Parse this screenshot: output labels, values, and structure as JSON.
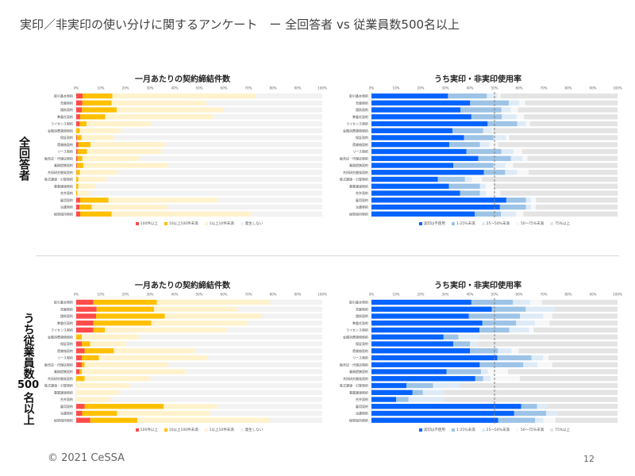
{
  "title": "実印／非実印の使い分けに関するアンケート　ー 全回答者 vs 従業員数500名以上",
  "side_labels": {
    "top": [
      "全回答者"
    ],
    "bottom": [
      "うち従業員数",
      "500",
      "名以上"
    ]
  },
  "footer": "© 2021 CeSSA",
  "page_number": "12",
  "colors": {
    "count": [
      "#ff4b4b",
      "#ffc000",
      "#fff2cc",
      "#f2f2f2"
    ],
    "usage": [
      "#0563ff",
      "#9dc3e6",
      "#deebf7",
      "#f7f7f7",
      "#e4e4e4"
    ]
  },
  "chart_data": [
    {
      "id": "all-count",
      "type": "bar",
      "stacked": true,
      "orientation": "horizontal",
      "title": "一月あたりの契約締結件数",
      "xlim": [
        0,
        100
      ],
      "ticks": [
        "0%",
        "10%",
        "20%",
        "30%",
        "40%",
        "50%",
        "60%",
        "70%",
        "80%",
        "90%",
        "100%"
      ],
      "palette": "count",
      "legend": "bottom",
      "refline": null,
      "categories": [
        "取引基本契約",
        "売買契約",
        "請負契約",
        "準委任契約",
        "ライセンス契約",
        "金銭消費貸借契約",
        "保証契約",
        "賃貸借契約",
        "リース契約",
        "販売店・代理店契約",
        "業務提携契約",
        "共同研究開発契約",
        "株式譲渡・引受契約",
        "事業譲渡契約",
        "合弁契約",
        "雇用契約",
        "派遣契約",
        "秘密保持契約"
      ],
      "series": [
        {
          "name": "100件以上",
          "values": [
            2.6,
            2.5,
            2.3,
            1.6,
            1.4,
            0,
            0.3,
            0.9,
            0.5,
            0.5,
            0.3,
            0.1,
            0,
            0,
            0,
            1.6,
            1.3,
            1.6
          ]
        },
        {
          "name": "10以上100件未満",
          "values": [
            12.1,
            11.9,
            14.2,
            10.2,
            2.8,
            1.5,
            1.9,
            4.9,
            3.9,
            2.0,
            2.6,
            1.4,
            0.9,
            0.9,
            0.5,
            11.5,
            5.0,
            12.8
          ]
        },
        {
          "name": "1以上10件未満",
          "values": [
            58.5,
            38.4,
            43.2,
            43.9,
            26.2,
            16.5,
            13.2,
            30.2,
            30.1,
            23.4,
            34.2,
            15.0,
            11.3,
            6.7,
            4.7,
            44.2,
            31.0,
            56.8
          ]
        },
        {
          "name": "発生しない",
          "values": [
            26.8,
            47.2,
            40.3,
            44.3,
            69.6,
            82.0,
            84.6,
            64.0,
            65.5,
            74.1,
            62.9,
            83.5,
            87.8,
            92.4,
            94.8,
            42.7,
            62.7,
            28.8
          ]
        }
      ]
    },
    {
      "id": "all-usage",
      "type": "bar",
      "stacked": true,
      "orientation": "horizontal",
      "title": "うち実印・非実印使用率",
      "xlim": [
        0,
        100
      ],
      "ticks": [
        "0%",
        "10%",
        "20%",
        "30%",
        "40%",
        "50%",
        "60%",
        "70%",
        "80%",
        "90%",
        "100%"
      ],
      "palette": "usage",
      "legend": "bottom",
      "refline": 50,
      "categories": [
        "取引基本契約",
        "売買契約",
        "請負契約",
        "準委任契約",
        "ライセンス契約",
        "金銭消費貸借契約",
        "保証契約",
        "賃貸借契約",
        "リース契約",
        "販売店・代理店契約",
        "業務提携契約",
        "共同研究開発契約",
        "株式譲渡・引受契約",
        "事業譲渡契約",
        "合弁契約",
        "雇用契約",
        "派遣契約",
        "秘密保持契約"
      ],
      "series": [
        {
          "name": "実印は不使用",
          "values": [
            31.1,
            40.1,
            36.2,
            40.6,
            47.2,
            32.9,
            37.6,
            31.6,
            38.6,
            43.4,
            33.3,
            45.7,
            27.0,
            31.5,
            36.0,
            54.8,
            52.2,
            42.0
          ]
        },
        {
          "name": "1-25％未満",
          "values": [
            15.8,
            15.7,
            16.6,
            12.4,
            12.0,
            12.5,
            12.0,
            12.5,
            14.2,
            13.3,
            16.3,
            8.6,
            11.0,
            12.6,
            8.1,
            8.0,
            10.6,
            10.6
          ]
        },
        {
          "name": "25〜50%未満",
          "values": [
            4.3,
            4.3,
            3.9,
            5.9,
            3.6,
            3.7,
            5.1,
            3.9,
            5.0,
            4.8,
            4.8,
            4.9,
            2.8,
            2.2,
            2.4,
            2.1,
            2.1,
            6.1
          ]
        },
        {
          "name": "50〜75%未満",
          "values": [
            1.3,
            2.3,
            2.8,
            3.1,
            1.6,
            0.3,
            1.2,
            3.5,
            3.5,
            1.9,
            3.1,
            4.7,
            4.1,
            3.4,
            5.9,
            2.0,
            1.8,
            3.0
          ]
        },
        {
          "name": "75%以上",
          "values": [
            47.5,
            37.6,
            40.5,
            38.0,
            35.6,
            50.6,
            44.1,
            48.5,
            38.7,
            36.6,
            42.5,
            36.1,
            55.1,
            50.3,
            47.6,
            33.1,
            33.3,
            38.3
          ]
        }
      ]
    },
    {
      "id": "large-count",
      "type": "bar",
      "stacked": true,
      "orientation": "horizontal",
      "title": "一月あたりの契約締結件数",
      "xlim": [
        0,
        100
      ],
      "ticks": [
        "0%",
        "10%",
        "20%",
        "30%",
        "40%",
        "50%",
        "60%",
        "70%",
        "80%",
        "90%",
        "100%"
      ],
      "palette": "count",
      "legend": "bottom",
      "refline": null,
      "categories": [
        "取引基本契約",
        "売買契約",
        "請負契約",
        "準委任契約",
        "ライセンス契約",
        "金銭消費貸借契約",
        "保証契約",
        "賃貸借契約",
        "リース契約",
        "販売店・代理店契約",
        "業務提携契約",
        "共同研究開発契約",
        "株式譲渡・引受契約",
        "事業譲渡契約",
        "合弁契約",
        "雇用契約",
        "派遣契約",
        "秘密保持契約"
      ],
      "series": [
        {
          "name": "100件以上",
          "values": [
            7.0,
            8.3,
            8.1,
            7.0,
            7.0,
            0,
            2.3,
            3.4,
            2.3,
            2.3,
            1.3,
            0,
            0,
            0,
            0,
            3.4,
            2.4,
            5.7
          ]
        },
        {
          "name": "10以上100件未満",
          "values": [
            25.8,
            23.3,
            27.9,
            23.5,
            4.7,
            2.3,
            3.4,
            11.9,
            6.9,
            1.1,
            1.0,
            3.4,
            0,
            0,
            0,
            32.2,
            14.2,
            19.2
          ]
        },
        {
          "name": "1以上10件未満",
          "values": [
            45.9,
            34.2,
            39.5,
            38.9,
            49.5,
            23.1,
            14.2,
            33.0,
            44.2,
            33.8,
            42.3,
            26.7,
            21.9,
            17.3,
            13.9,
            21.5,
            38.0,
            53.5
          ]
        },
        {
          "name": "発生しない",
          "values": [
            21.3,
            34.2,
            24.5,
            30.6,
            38.8,
            74.6,
            80.1,
            51.7,
            46.6,
            62.8,
            55.4,
            69.9,
            78.1,
            82.7,
            86.1,
            42.9,
            45.4,
            21.6
          ]
        }
      ]
    },
    {
      "id": "large-usage",
      "type": "bar",
      "stacked": true,
      "orientation": "horizontal",
      "title": "うち実印・非実印使用率",
      "xlim": [
        0,
        100
      ],
      "ticks": [
        "0%",
        "10%",
        "20%",
        "30%",
        "40%",
        "50%",
        "60%",
        "70%",
        "80%",
        "90%",
        "100%"
      ],
      "palette": "usage",
      "legend": "bottom",
      "refline": 50,
      "categories": [
        "取引基本契約",
        "売買契約",
        "請負契約",
        "準委任契約",
        "ライセンス契約",
        "金銭消費貸借契約",
        "保証契約",
        "賃貸借契約",
        "リース契約",
        "販売店・代理店契約",
        "業務提携契約",
        "共同研究開発契約",
        "株式譲渡・引受契約",
        "事業譲渡契約",
        "合弁契約",
        "雇用契約",
        "派遣契約",
        "秘密保持契約"
      ],
      "series": [
        {
          "name": "実印は不使用",
          "values": [
            40.6,
            48.9,
            39.6,
            45.1,
            43.9,
            29.3,
            33.3,
            40.0,
            51.2,
            44.0,
            30.5,
            42.2,
            14.2,
            16.7,
            10.0,
            60.8,
            58.0,
            51.5
          ]
        },
        {
          "name": "1-25％未満",
          "values": [
            16.9,
            13.8,
            20.8,
            13.7,
            12.1,
            6.0,
            6.7,
            11.4,
            13.8,
            17.7,
            14.0,
            3.2,
            10.8,
            4.2,
            5.0,
            6.5,
            13.0,
            15.0
          ]
        },
        {
          "name": "25〜50%未満",
          "values": [
            6.9,
            11.8,
            9.4,
            7.7,
            8.1,
            8.6,
            3.3,
            5.5,
            4.8,
            5.8,
            2.8,
            3.1,
            10.7,
            8.2,
            14.7,
            4.3,
            4.4,
            3.4
          ]
        },
        {
          "name": "50〜75%未満",
          "values": [
            5.0,
            0,
            3.7,
            5.9,
            1.8,
            0,
            0,
            2.9,
            2.1,
            6.0,
            8.2,
            11.8,
            0,
            0,
            0,
            0,
            0,
            4.9
          ]
        },
        {
          "name": "75%以上",
          "values": [
            30.6,
            25.5,
            26.5,
            27.6,
            34.1,
            56.1,
            56.7,
            40.2,
            28.1,
            26.5,
            44.5,
            39.7,
            64.3,
            70.9,
            70.3,
            28.4,
            24.6,
            25.2
          ]
        }
      ]
    }
  ]
}
